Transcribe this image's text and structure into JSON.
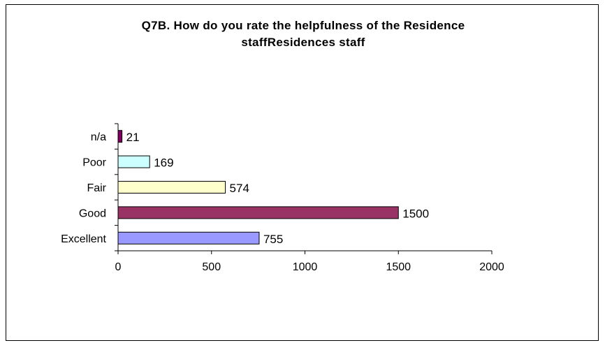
{
  "chart_data": {
    "type": "bar",
    "orientation": "horizontal",
    "title_lines": [
      "Q7B.  How do you rate the helpfulness of the Residence",
      "staffResidences staff"
    ],
    "categories": [
      "n/a",
      "Poor",
      "Fair",
      "Good",
      "Excellent"
    ],
    "values": [
      21,
      169,
      574,
      1500,
      755
    ],
    "value_labels": [
      "21",
      "169",
      "574",
      "1500",
      "755"
    ],
    "xlim": [
      0,
      2000
    ],
    "x_ticks": [
      "0",
      "500",
      "1000",
      "1500",
      "2000"
    ],
    "bar_colors": [
      "#800060",
      "#ccffff",
      "#ffffcc",
      "#993366",
      "#9999ff"
    ],
    "grid": false,
    "legend": "none",
    "xlabel": "",
    "ylabel": ""
  }
}
